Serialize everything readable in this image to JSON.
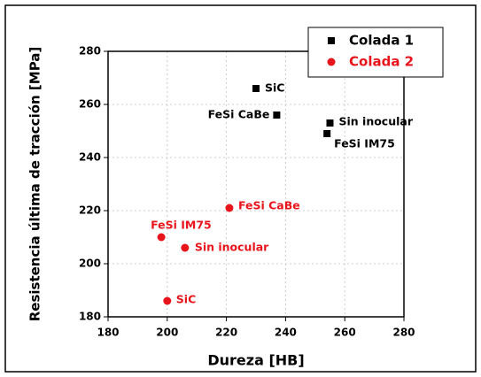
{
  "chart_data": {
    "type": "scatter",
    "x_label": "Dureza [HB]",
    "y_label": "Resistencia última de tracción [MPa]",
    "xlim": [
      180,
      280
    ],
    "xticks": [
      180,
      200,
      220,
      240,
      260,
      280
    ],
    "ylim": [
      180,
      280
    ],
    "yticks": [
      180,
      200,
      220,
      240,
      260,
      280
    ],
    "grid": true,
    "legend": "upper right",
    "series": [
      {
        "name": "Colada 1",
        "color": "#000000",
        "marker": "square",
        "x": [
          230,
          237,
          255,
          254
        ],
        "values": [
          266,
          256,
          253,
          249
        ],
        "labels": [
          "SiC",
          "FeSi CaBe",
          "Sin inocular",
          "FeSi IM75"
        ]
      },
      {
        "name": "Colada 2",
        "color": "#e8141b",
        "marker": "circle",
        "x": [
          221,
          198,
          206,
          200
        ],
        "values": [
          221,
          210,
          206,
          186
        ],
        "labels": [
          "FeSi CaBe",
          "FeSi IM75",
          "Sin inocular",
          "SiC"
        ]
      }
    ]
  }
}
